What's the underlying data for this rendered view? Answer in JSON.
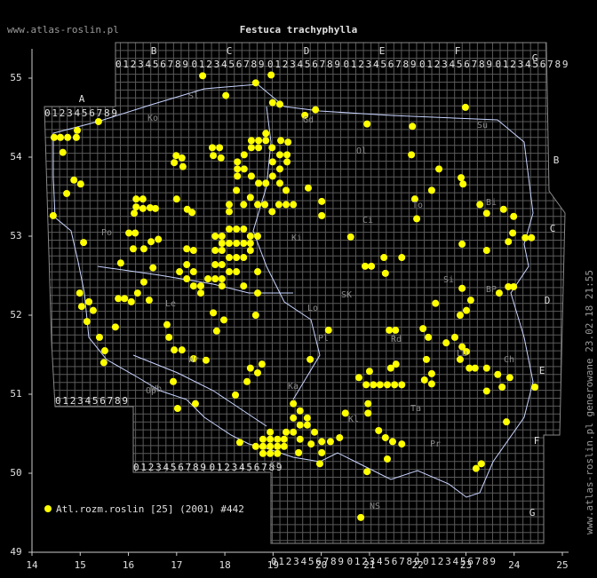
{
  "map": {
    "title": "Festuca trachyphylla",
    "site": "www.atlas-roslin.pl",
    "side_note": "www.atlas-roslin.pl generowane 23.02.18 21:55",
    "legend": "Atl.rozm.roslin [25] (2001) #442",
    "color": "#ffff00",
    "xlim": [
      14,
      25
    ],
    "ylim": [
      49,
      55
    ],
    "xticks": [
      14,
      15,
      16,
      17,
      18,
      19,
      20,
      21,
      22,
      23,
      24,
      25
    ],
    "yticks": [
      49,
      50,
      51,
      52,
      53,
      54,
      55
    ],
    "columns": [
      "A",
      "B",
      "C",
      "D",
      "E",
      "F",
      "G"
    ],
    "digits": "0123456789",
    "regions": [
      "Sl",
      "Ko",
      "Gd",
      "Su",
      "Ol",
      "Bi",
      "Ci",
      "To",
      "SK",
      "Lo",
      "Rd",
      "Si",
      "BP",
      "Le",
      "Pl",
      "Wr",
      "Op",
      "Ka",
      "Kr",
      "NS",
      "Kl",
      "Ta",
      "Pr",
      "Ch",
      "Lu",
      "Po",
      "Ki",
      "Wb"
    ],
    "points": [
      [
        17.54,
        55.03
      ],
      [
        18.64,
        54.94
      ],
      [
        18.96,
        55.04
      ],
      [
        18.02,
        54.78
      ],
      [
        18.99,
        54.69
      ],
      [
        19.14,
        54.67
      ],
      [
        19.88,
        54.6
      ],
      [
        19.66,
        54.53
      ],
      [
        22.99,
        54.63
      ],
      [
        20.95,
        54.42
      ],
      [
        21.89,
        54.39
      ],
      [
        15.38,
        54.45
      ],
      [
        14.94,
        54.34
      ],
      [
        14.46,
        54.25
      ],
      [
        14.59,
        54.25
      ],
      [
        14.74,
        54.25
      ],
      [
        14.92,
        54.25
      ],
      [
        14.64,
        54.06
      ],
      [
        21.87,
        54.03
      ],
      [
        22.44,
        53.85
      ],
      [
        22.9,
        53.74
      ],
      [
        22.94,
        53.66
      ],
      [
        22.29,
        53.58
      ],
      [
        21.94,
        53.47
      ],
      [
        21.98,
        53.22
      ],
      [
        23.29,
        53.4
      ],
      [
        23.43,
        53.29
      ],
      [
        23.78,
        53.34
      ],
      [
        23.99,
        53.25
      ],
      [
        23.88,
        52.93
      ],
      [
        23.97,
        53.04
      ],
      [
        24.23,
        52.98
      ],
      [
        24.36,
        52.98
      ],
      [
        14.44,
        53.26
      ],
      [
        14.72,
        53.54
      ],
      [
        14.87,
        53.71
      ],
      [
        15.01,
        53.66
      ],
      [
        15.07,
        52.92
      ],
      [
        16.99,
        54.02
      ],
      [
        17.11,
        53.99
      ],
      [
        17.13,
        53.88
      ],
      [
        16.95,
        53.93
      ],
      [
        17.74,
        54.12
      ],
      [
        17.89,
        54.12
      ],
      [
        17.76,
        54.02
      ],
      [
        17.92,
        53.99
      ],
      [
        17.22,
        53.34
      ],
      [
        17.0,
        53.47
      ],
      [
        17.32,
        53.3
      ],
      [
        16.16,
        53.47
      ],
      [
        16.3,
        53.47
      ],
      [
        16.16,
        53.37
      ],
      [
        16.3,
        53.35
      ],
      [
        16.45,
        53.36
      ],
      [
        16.56,
        53.35
      ],
      [
        16.12,
        53.29
      ],
      [
        18.55,
        54.21
      ],
      [
        18.7,
        54.21
      ],
      [
        18.85,
        54.3
      ],
      [
        18.85,
        54.21
      ],
      [
        18.98,
        54.12
      ],
      [
        19.16,
        54.21
      ],
      [
        19.31,
        54.19
      ],
      [
        18.7,
        54.12
      ],
      [
        18.55,
        54.12
      ],
      [
        18.4,
        54.03
      ],
      [
        18.26,
        53.94
      ],
      [
        18.26,
        53.85
      ],
      [
        18.26,
        53.76
      ],
      [
        18.4,
        53.85
      ],
      [
        18.55,
        53.76
      ],
      [
        18.7,
        53.67
      ],
      [
        18.85,
        53.67
      ],
      [
        18.99,
        53.76
      ],
      [
        19.14,
        53.85
      ],
      [
        19.29,
        53.94
      ],
      [
        19.29,
        54.03
      ],
      [
        19.14,
        54.03
      ],
      [
        18.99,
        53.94
      ],
      [
        19.14,
        53.67
      ],
      [
        19.27,
        53.58
      ],
      [
        19.27,
        53.4
      ],
      [
        19.42,
        53.4
      ],
      [
        19.12,
        53.4
      ],
      [
        18.98,
        53.31
      ],
      [
        18.83,
        53.4
      ],
      [
        18.68,
        53.4
      ],
      [
        18.53,
        53.49
      ],
      [
        18.39,
        53.4
      ],
      [
        18.24,
        53.58
      ],
      [
        18.09,
        53.4
      ],
      [
        18.09,
        53.31
      ],
      [
        17.8,
        53.0
      ],
      [
        17.94,
        53.0
      ],
      [
        18.09,
        53.09
      ],
      [
        18.24,
        53.09
      ],
      [
        18.39,
        53.09
      ],
      [
        18.53,
        53.0
      ],
      [
        18.68,
        53.0
      ],
      [
        17.94,
        52.91
      ],
      [
        18.09,
        52.91
      ],
      [
        18.24,
        52.91
      ],
      [
        18.39,
        52.91
      ],
      [
        18.53,
        52.91
      ],
      [
        17.8,
        52.82
      ],
      [
        17.94,
        52.82
      ],
      [
        18.09,
        52.73
      ],
      [
        18.24,
        52.73
      ],
      [
        18.39,
        52.73
      ],
      [
        18.53,
        52.82
      ],
      [
        17.8,
        52.64
      ],
      [
        17.94,
        52.64
      ],
      [
        18.09,
        52.55
      ],
      [
        18.24,
        52.55
      ],
      [
        17.8,
        52.46
      ],
      [
        17.94,
        52.46
      ],
      [
        17.65,
        52.46
      ],
      [
        17.5,
        52.37
      ],
      [
        17.35,
        52.37
      ],
      [
        17.5,
        52.28
      ],
      [
        17.94,
        52.37
      ],
      [
        18.39,
        52.37
      ],
      [
        18.68,
        52.55
      ],
      [
        18.68,
        52.28
      ],
      [
        17.21,
        52.84
      ],
      [
        17.35,
        52.82
      ],
      [
        17.21,
        52.64
      ],
      [
        17.06,
        52.55
      ],
      [
        17.21,
        52.46
      ],
      [
        17.35,
        52.55
      ],
      [
        16.62,
        52.96
      ],
      [
        16.47,
        52.93
      ],
      [
        16.32,
        52.84
      ],
      [
        16.1,
        52.84
      ],
      [
        16.01,
        53.04
      ],
      [
        16.14,
        53.04
      ],
      [
        15.84,
        52.66
      ],
      [
        16.51,
        52.6
      ],
      [
        16.32,
        52.42
      ],
      [
        16.19,
        52.28
      ],
      [
        16.06,
        52.17
      ],
      [
        15.92,
        52.21
      ],
      [
        15.79,
        52.21
      ],
      [
        15.18,
        52.17
      ],
      [
        15.03,
        52.11
      ],
      [
        15.27,
        52.06
      ],
      [
        14.99,
        52.28
      ],
      [
        15.14,
        51.92
      ],
      [
        15.4,
        51.72
      ],
      [
        15.51,
        51.55
      ],
      [
        15.49,
        51.4
      ],
      [
        15.73,
        51.85
      ],
      [
        16.43,
        52.19
      ],
      [
        16.8,
        51.88
      ],
      [
        16.84,
        51.72
      ],
      [
        16.95,
        51.56
      ],
      [
        17.11,
        51.56
      ],
      [
        17.35,
        51.45
      ],
      [
        17.61,
        51.43
      ],
      [
        17.83,
        51.8
      ],
      [
        17.76,
        52.03
      ],
      [
        18.64,
        52.0
      ],
      [
        18.77,
        51.38
      ],
      [
        18.53,
        51.33
      ],
      [
        18.68,
        51.27
      ],
      [
        18.46,
        51.16
      ],
      [
        16.93,
        51.16
      ],
      [
        17.02,
        50.82
      ],
      [
        17.39,
        50.88
      ],
      [
        18.22,
        50.99
      ],
      [
        17.98,
        51.94
      ],
      [
        19.77,
        51.44
      ],
      [
        20.15,
        51.81
      ],
      [
        19.42,
        50.88
      ],
      [
        19.56,
        50.79
      ],
      [
        19.71,
        50.7
      ],
      [
        19.42,
        50.7
      ],
      [
        19.56,
        50.61
      ],
      [
        19.71,
        50.61
      ],
      [
        19.86,
        50.52
      ],
      [
        19.27,
        50.52
      ],
      [
        19.42,
        50.52
      ],
      [
        19.56,
        50.43
      ],
      [
        18.94,
        50.52
      ],
      [
        18.79,
        50.43
      ],
      [
        18.94,
        50.43
      ],
      [
        19.09,
        50.43
      ],
      [
        19.23,
        50.43
      ],
      [
        18.64,
        50.34
      ],
      [
        18.79,
        50.34
      ],
      [
        18.94,
        50.34
      ],
      [
        19.09,
        50.34
      ],
      [
        19.23,
        50.34
      ],
      [
        18.79,
        50.25
      ],
      [
        18.94,
        50.25
      ],
      [
        19.09,
        50.25
      ],
      [
        19.53,
        50.26
      ],
      [
        19.79,
        50.37
      ],
      [
        20.01,
        50.26
      ],
      [
        20.01,
        50.4
      ],
      [
        20.19,
        50.4
      ],
      [
        20.38,
        50.45
      ],
      [
        19.97,
        50.12
      ],
      [
        18.31,
        50.39
      ],
      [
        20.78,
        51.21
      ],
      [
        20.93,
        51.12
      ],
      [
        21.08,
        51.12
      ],
      [
        21.22,
        51.12
      ],
      [
        21.37,
        51.12
      ],
      [
        21.52,
        51.12
      ],
      [
        21.67,
        51.12
      ],
      [
        21.44,
        51.33
      ],
      [
        21.55,
        51.38
      ],
      [
        21.0,
        51.29
      ],
      [
        20.5,
        50.76
      ],
      [
        20.97,
        50.88
      ],
      [
        20.97,
        50.76
      ],
      [
        21.19,
        50.54
      ],
      [
        21.33,
        50.45
      ],
      [
        21.48,
        50.4
      ],
      [
        21.67,
        50.37
      ],
      [
        21.37,
        50.18
      ],
      [
        22.18,
        51.44
      ],
      [
        22.29,
        51.26
      ],
      [
        22.29,
        51.13
      ],
      [
        22.14,
        51.18
      ],
      [
        22.88,
        51.44
      ],
      [
        23.07,
        51.33
      ],
      [
        23.19,
        51.33
      ],
      [
        23.43,
        51.33
      ],
      [
        23.66,
        51.25
      ],
      [
        23.91,
        51.21
      ],
      [
        23.75,
        51.09
      ],
      [
        23.43,
        51.04
      ],
      [
        23.84,
        50.65
      ],
      [
        24.43,
        51.09
      ],
      [
        23.32,
        50.12
      ],
      [
        23.21,
        50.06
      ],
      [
        20.95,
        50.02
      ],
      [
        20.82,
        49.44
      ],
      [
        22.59,
        51.65
      ],
      [
        22.77,
        51.72
      ],
      [
        22.92,
        51.6
      ],
      [
        23.01,
        51.54
      ],
      [
        22.88,
        52.0
      ],
      [
        23.01,
        52.06
      ],
      [
        23.1,
        52.19
      ],
      [
        22.92,
        52.34
      ],
      [
        23.69,
        52.28
      ],
      [
        23.88,
        52.36
      ],
      [
        23.99,
        52.36
      ],
      [
        23.43,
        52.82
      ],
      [
        22.92,
        52.9
      ],
      [
        22.37,
        52.15
      ],
      [
        22.11,
        51.83
      ],
      [
        22.22,
        51.72
      ],
      [
        21.54,
        51.81
      ],
      [
        21.41,
        51.81
      ],
      [
        21.04,
        52.62
      ],
      [
        20.91,
        52.62
      ],
      [
        21.33,
        52.53
      ],
      [
        21.67,
        52.73
      ],
      [
        21.3,
        52.73
      ],
      [
        20.61,
        52.99
      ],
      [
        20.01,
        53.26
      ],
      [
        20.01,
        53.44
      ],
      [
        19.73,
        53.61
      ]
    ]
  }
}
